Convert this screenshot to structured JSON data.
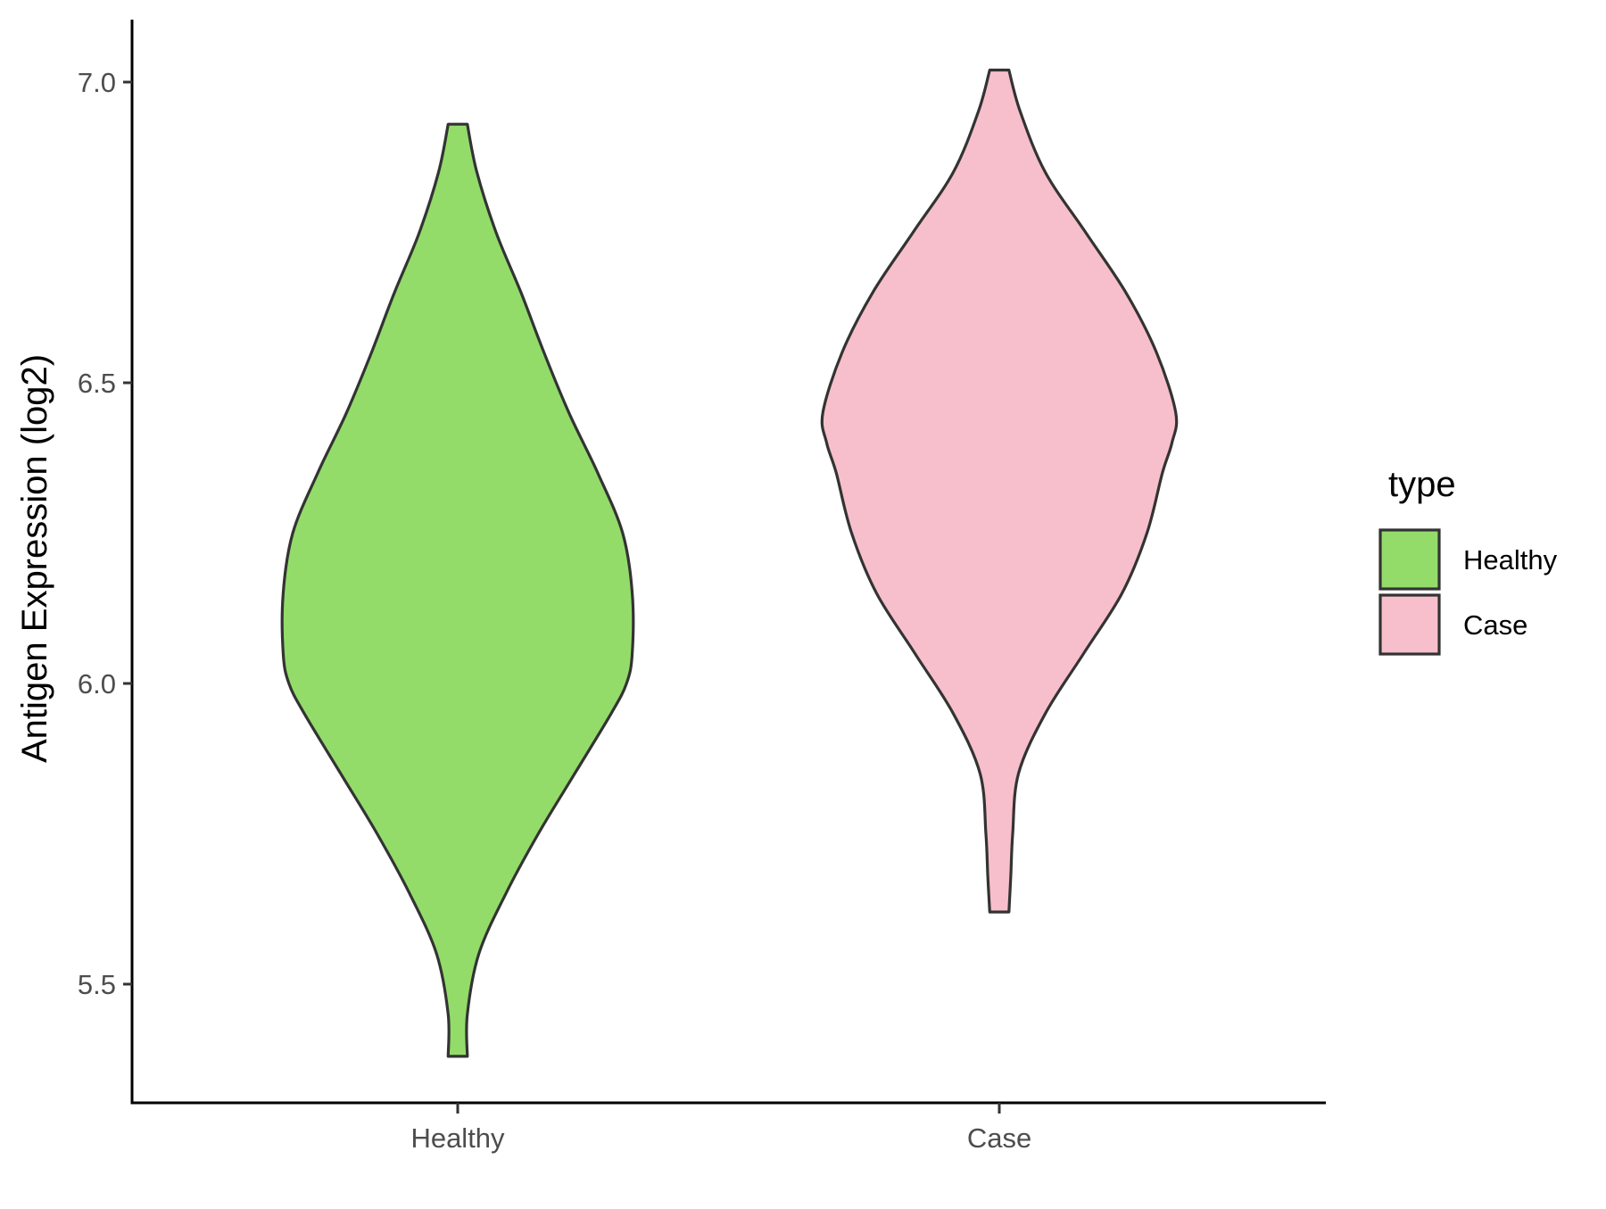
{
  "chart_data": {
    "type": "violin",
    "title": "",
    "xlabel": "",
    "ylabel": "Antigen Expression (log2)",
    "ylim": [
      5.3,
      7.1
    ],
    "yticks": [
      "5.5",
      "6.0",
      "6.5",
      "7.0"
    ],
    "ytick_values": [
      5.5,
      6.0,
      6.5,
      7.0
    ],
    "categories": [
      "Healthy",
      "Case"
    ],
    "grid": false,
    "legend": {
      "title": "type",
      "position": "right",
      "items": [
        {
          "label": "Healthy",
          "color": "#93dc6a"
        },
        {
          "label": "Case",
          "color": "#f7bfcb"
        }
      ]
    },
    "series": [
      {
        "category": "Healthy",
        "color": "#93dc6a",
        "min": 5.38,
        "max": 6.93,
        "density_profile": [
          [
            6.93,
            0.05
          ],
          [
            6.85,
            0.1
          ],
          [
            6.75,
            0.2
          ],
          [
            6.65,
            0.33
          ],
          [
            6.55,
            0.45
          ],
          [
            6.45,
            0.58
          ],
          [
            6.35,
            0.73
          ],
          [
            6.25,
            0.86
          ],
          [
            6.15,
            0.91
          ],
          [
            6.05,
            0.91
          ],
          [
            6.0,
            0.88
          ],
          [
            5.95,
            0.8
          ],
          [
            5.85,
            0.61
          ],
          [
            5.75,
            0.42
          ],
          [
            5.65,
            0.25
          ],
          [
            5.55,
            0.11
          ],
          [
            5.45,
            0.05
          ],
          [
            5.38,
            0.05
          ]
        ]
      },
      {
        "category": "Case",
        "color": "#f7bfcb",
        "min": 5.62,
        "max": 7.02,
        "density_profile": [
          [
            7.02,
            0.05
          ],
          [
            6.95,
            0.11
          ],
          [
            6.85,
            0.24
          ],
          [
            6.75,
            0.45
          ],
          [
            6.65,
            0.66
          ],
          [
            6.55,
            0.82
          ],
          [
            6.45,
            0.92
          ],
          [
            6.4,
            0.9
          ],
          [
            6.35,
            0.85
          ],
          [
            6.25,
            0.77
          ],
          [
            6.15,
            0.64
          ],
          [
            6.05,
            0.44
          ],
          [
            5.95,
            0.24
          ],
          [
            5.85,
            0.1
          ],
          [
            5.75,
            0.07
          ],
          [
            5.68,
            0.06
          ],
          [
            5.62,
            0.05
          ]
        ]
      }
    ]
  }
}
